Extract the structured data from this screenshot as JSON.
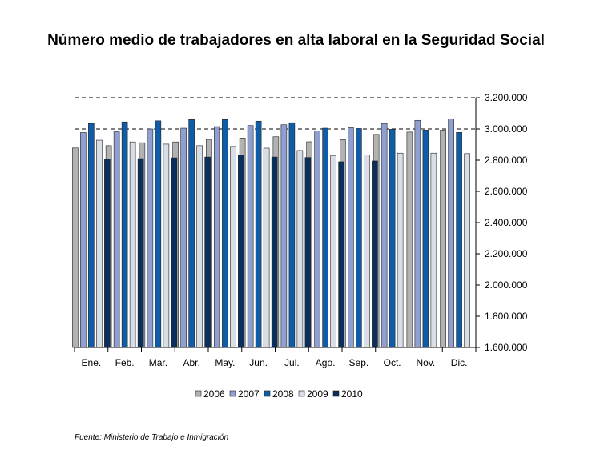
{
  "chart_data": {
    "type": "bar",
    "title": "Número medio de trabajadores en alta laboral en la Seguridad Social",
    "source": "Fuente: Ministerio de Trabajo e Inmigración",
    "categories": [
      "Ene.",
      "Feb.",
      "Mar.",
      "Abr.",
      "May.",
      "Jun.",
      "Jul.",
      "Ago.",
      "Sep.",
      "Oct.",
      "Nov.",
      "Dic."
    ],
    "y_axis": {
      "position": "right",
      "min": 1600000,
      "max": 3200000,
      "step": 200000,
      "tick_labels": [
        "1.600.000",
        "1.800.000",
        "2.000.000",
        "2.200.000",
        "2.400.000",
        "2.600.000",
        "2.800.000",
        "3.000.000",
        "3.200.000"
      ],
      "dashed_reference_lines": [
        3000000,
        3200000
      ]
    },
    "legend_position": "bottom",
    "series": [
      {
        "name": "2006",
        "color": "#b2b2b2",
        "values": [
          2878000,
          2893000,
          2912000,
          2917000,
          2933000,
          2942000,
          2950000,
          2918000,
          2932000,
          2965000,
          2980000,
          2993000
        ]
      },
      {
        "name": "2007",
        "color": "#8f9fd0",
        "values": [
          2977000,
          2982000,
          3000000,
          3005000,
          3015000,
          3022000,
          3027000,
          2988000,
          3008000,
          3035000,
          3055000,
          3065000
        ]
      },
      {
        "name": "2008",
        "color": "#0f5da8",
        "values": [
          3035000,
          3045000,
          3052000,
          3060000,
          3060000,
          3050000,
          3040000,
          3005000,
          3003000,
          2998000,
          2993000,
          2978000
        ]
      },
      {
        "name": "2009",
        "color": "#d8dde6",
        "values": [
          2928000,
          2917000,
          2903000,
          2893000,
          2888000,
          2877000,
          2862000,
          2830000,
          2833000,
          2845000,
          2845000,
          2842000
        ]
      },
      {
        "name": "2010",
        "color": "#0a2f5c",
        "values": [
          2808000,
          2810000,
          2815000,
          2820000,
          2832000,
          2820000,
          2817000,
          2790000,
          2795000,
          null,
          null,
          null
        ]
      }
    ]
  }
}
